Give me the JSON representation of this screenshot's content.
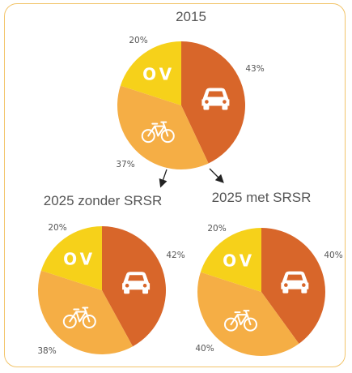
{
  "colors": {
    "auto": "#d8662a",
    "fiets": "#f5ae45",
    "ov": "#f6d11a",
    "text": "#555555",
    "frame": "#f2c46a"
  },
  "chart_data": [
    {
      "type": "pie",
      "title": "2015",
      "slices": [
        {
          "category": "auto",
          "icon": "car-icon",
          "value": 43,
          "label": "43%"
        },
        {
          "category": "fiets",
          "icon": "bicycle-icon",
          "value": 37,
          "label": "37%"
        },
        {
          "category": "ov",
          "icon": "",
          "value": 20,
          "label": "20%",
          "text": "OV"
        }
      ]
    },
    {
      "type": "pie",
      "title": "2025 zonder SRSR",
      "slices": [
        {
          "category": "auto",
          "icon": "car-icon",
          "value": 42,
          "label": "42%"
        },
        {
          "category": "fiets",
          "icon": "bicycle-icon",
          "value": 38,
          "label": "38%"
        },
        {
          "category": "ov",
          "icon": "",
          "value": 20,
          "label": "20%",
          "text": "OV"
        }
      ]
    },
    {
      "type": "pie",
      "title": "2025 met SRSR",
      "slices": [
        {
          "category": "auto",
          "icon": "car-icon",
          "value": 40,
          "label": "40%"
        },
        {
          "category": "fiets",
          "icon": "bicycle-icon",
          "value": 40,
          "label": "40%"
        },
        {
          "category": "ov",
          "icon": "",
          "value": 20,
          "label": "20%",
          "text": "OV"
        }
      ]
    }
  ]
}
